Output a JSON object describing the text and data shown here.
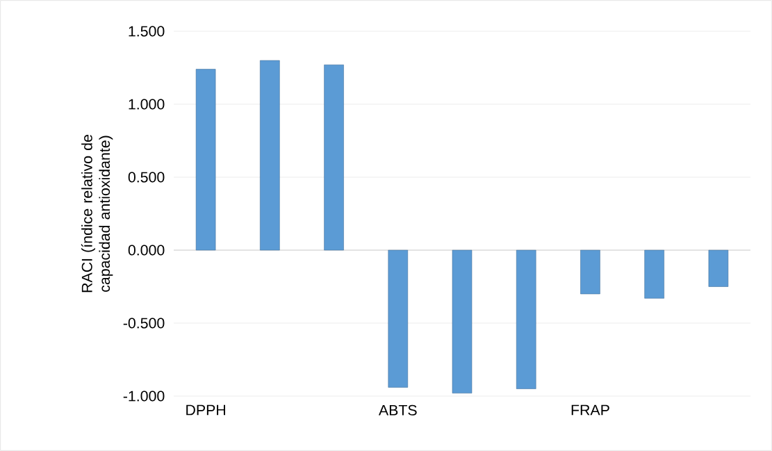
{
  "chart_data": {
    "type": "bar",
    "ylabel": "RACI (índice relativo de capacidad antioxidante)",
    "categories": [
      "DPPH",
      null,
      null,
      "ABTS",
      null,
      null,
      "FRAP",
      null,
      null
    ],
    "values": [
      1.24,
      1.3,
      1.27,
      -0.94,
      -0.98,
      -0.95,
      -0.3,
      -0.33,
      -0.25
    ],
    "color": "#5b9bd5",
    "ylim": [
      -1,
      1.5
    ],
    "yticks": [
      {
        "value": -1,
        "label": "-1.000"
      },
      {
        "value": -0.5,
        "label": "-0.500"
      },
      {
        "value": 0,
        "label": "0.000"
      },
      {
        "value": 0.5,
        "label": "0.500"
      },
      {
        "value": 1,
        "label": "1.000"
      },
      {
        "value": 1.5,
        "label": "1.500"
      }
    ],
    "grid": "y"
  }
}
